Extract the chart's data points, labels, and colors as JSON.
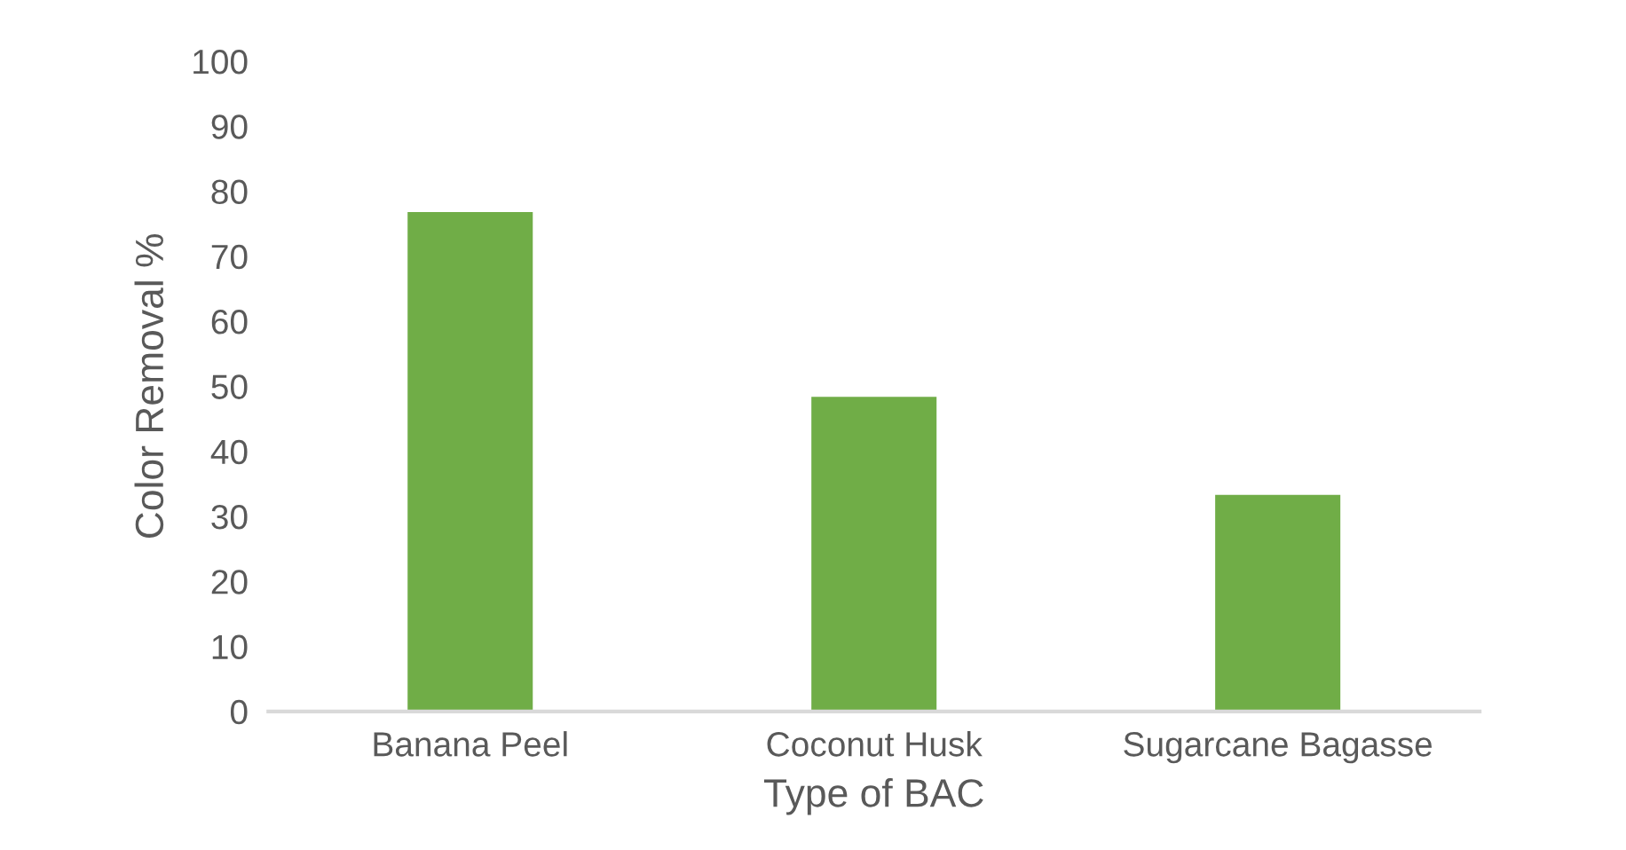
{
  "chart_data": {
    "type": "bar",
    "xlabel": "Type of BAC",
    "ylabel": "Color Removal %",
    "categories": [
      "Banana Peel",
      "Coconut Husk",
      "Sugarcane Bagasse"
    ],
    "values": [
      76.8,
      48.4,
      33.3
    ],
    "color": "#70ad47",
    "ylim": [
      0,
      100
    ],
    "yticks": [
      0,
      10,
      20,
      30,
      40,
      50,
      60,
      70,
      80,
      90,
      100
    ],
    "grid": false
  }
}
